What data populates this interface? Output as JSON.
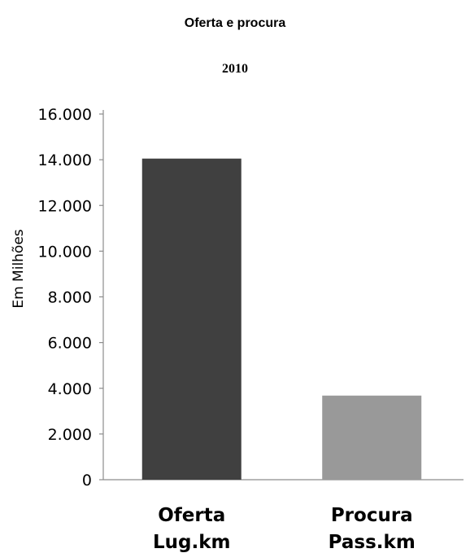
{
  "chart_data": {
    "type": "bar",
    "title": "Oferta e procura",
    "subtitle": "2010",
    "ylabel": "Em Milhões",
    "xlabel": "",
    "ylim": [
      0,
      16000
    ],
    "yticks": [
      0,
      2000,
      4000,
      6000,
      8000,
      10000,
      12000,
      14000,
      16000
    ],
    "ytick_labels": [
      "0",
      "2.000",
      "4.000",
      "6.000",
      "8.000",
      "10.000",
      "12.000",
      "14.000",
      "16.000"
    ],
    "categories": [
      [
        "Oferta",
        "Lug.km"
      ],
      [
        "Procura",
        "Pass.km"
      ]
    ],
    "values": [
      14050,
      3680
    ],
    "colors": [
      "#404040",
      "#999999"
    ],
    "grid": false,
    "legend": "none"
  }
}
